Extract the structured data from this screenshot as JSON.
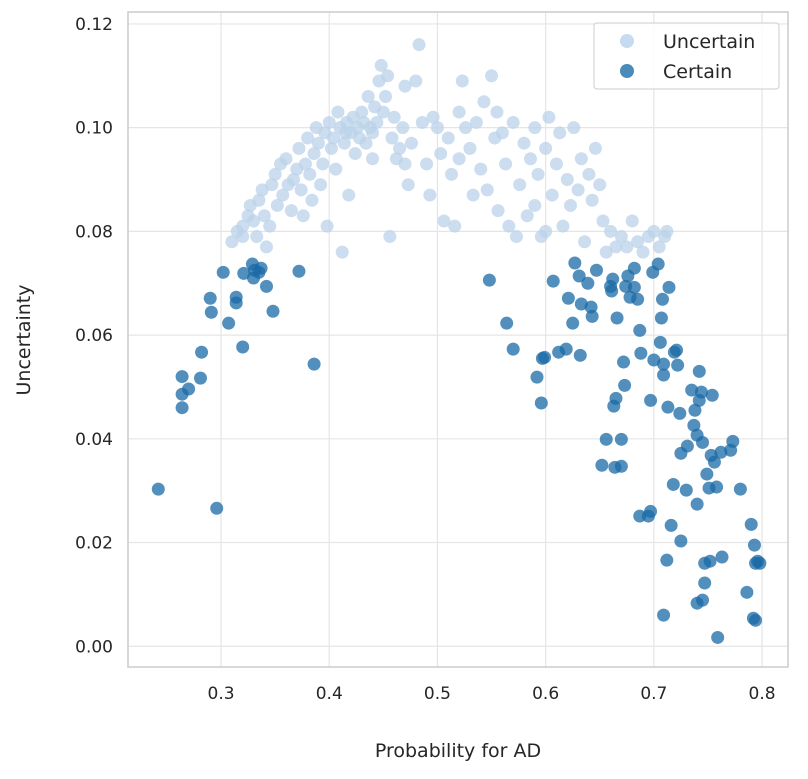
{
  "chart_data": {
    "type": "scatter",
    "title": "",
    "xlabel": "Probability for AD",
    "ylabel": "Uncertainty",
    "xlim": [
      0.214,
      0.824
    ],
    "ylim": [
      -0.004,
      0.1223
    ],
    "xticks": [
      "0.3",
      "0.4",
      "0.5",
      "0.6",
      "0.7",
      "0.8"
    ],
    "yticks": [
      "0.00",
      "0.02",
      "0.04",
      "0.06",
      "0.08",
      "0.10",
      "0.12"
    ],
    "grid": true,
    "legend_position": "top-right",
    "series": [
      {
        "name": "Uncertain",
        "color": "#b9d2e8",
        "points": [
          [
            0.31,
            0.078
          ],
          [
            0.315,
            0.08
          ],
          [
            0.32,
            0.079
          ],
          [
            0.32,
            0.081
          ],
          [
            0.325,
            0.083
          ],
          [
            0.327,
            0.085
          ],
          [
            0.33,
            0.082
          ],
          [
            0.333,
            0.079
          ],
          [
            0.335,
            0.086
          ],
          [
            0.338,
            0.088
          ],
          [
            0.34,
            0.083
          ],
          [
            0.342,
            0.077
          ],
          [
            0.345,
            0.081
          ],
          [
            0.347,
            0.089
          ],
          [
            0.35,
            0.091
          ],
          [
            0.352,
            0.085
          ],
          [
            0.355,
            0.093
          ],
          [
            0.357,
            0.087
          ],
          [
            0.36,
            0.094
          ],
          [
            0.362,
            0.089
          ],
          [
            0.365,
            0.084
          ],
          [
            0.367,
            0.09
          ],
          [
            0.37,
            0.092
          ],
          [
            0.372,
            0.096
          ],
          [
            0.374,
            0.088
          ],
          [
            0.376,
            0.083
          ],
          [
            0.378,
            0.093
          ],
          [
            0.38,
            0.098
          ],
          [
            0.382,
            0.091
          ],
          [
            0.384,
            0.086
          ],
          [
            0.386,
            0.095
          ],
          [
            0.388,
            0.1
          ],
          [
            0.39,
            0.097
          ],
          [
            0.392,
            0.089
          ],
          [
            0.394,
            0.093
          ],
          [
            0.396,
            0.099
          ],
          [
            0.398,
            0.081
          ],
          [
            0.4,
            0.101
          ],
          [
            0.402,
            0.096
          ],
          [
            0.404,
            0.098
          ],
          [
            0.406,
            0.092
          ],
          [
            0.408,
            0.103
          ],
          [
            0.41,
            0.1
          ],
          [
            0.412,
            0.076
          ],
          [
            0.414,
            0.097
          ],
          [
            0.416,
            0.101
          ],
          [
            0.418,
            0.087
          ],
          [
            0.42,
            0.099
          ],
          [
            0.422,
            0.102
          ],
          [
            0.424,
            0.095
          ],
          [
            0.426,
            0.1
          ],
          [
            0.428,
            0.098
          ],
          [
            0.43,
            0.103
          ],
          [
            0.432,
            0.101
          ],
          [
            0.434,
            0.097
          ],
          [
            0.436,
            0.106
          ],
          [
            0.438,
            0.1
          ],
          [
            0.44,
            0.099
          ],
          [
            0.442,
            0.104
          ],
          [
            0.444,
            0.101
          ],
          [
            0.446,
            0.109
          ],
          [
            0.448,
            0.112
          ],
          [
            0.45,
            0.103
          ],
          [
            0.452,
            0.106
          ],
          [
            0.454,
            0.11
          ],
          [
            0.456,
            0.079
          ],
          [
            0.458,
            0.098
          ],
          [
            0.46,
            0.102
          ],
          [
            0.462,
            0.094
          ],
          [
            0.465,
            0.096
          ],
          [
            0.468,
            0.1
          ],
          [
            0.47,
            0.093
          ],
          [
            0.473,
            0.089
          ],
          [
            0.476,
            0.097
          ],
          [
            0.48,
            0.109
          ],
          [
            0.483,
            0.116
          ],
          [
            0.486,
            0.101
          ],
          [
            0.49,
            0.093
          ],
          [
            0.493,
            0.087
          ],
          [
            0.496,
            0.102
          ],
          [
            0.5,
            0.1
          ],
          [
            0.503,
            0.095
          ],
          [
            0.506,
            0.082
          ],
          [
            0.51,
            0.098
          ],
          [
            0.513,
            0.091
          ],
          [
            0.516,
            0.081
          ],
          [
            0.52,
            0.094
          ],
          [
            0.523,
            0.109
          ],
          [
            0.526,
            0.1
          ],
          [
            0.53,
            0.096
          ],
          [
            0.533,
            0.087
          ],
          [
            0.536,
            0.101
          ],
          [
            0.54,
            0.092
          ],
          [
            0.543,
            0.105
          ],
          [
            0.546,
            0.088
          ],
          [
            0.55,
            0.11
          ],
          [
            0.553,
            0.098
          ],
          [
            0.556,
            0.084
          ],
          [
            0.56,
            0.099
          ],
          [
            0.563,
            0.093
          ],
          [
            0.566,
            0.081
          ],
          [
            0.57,
            0.101
          ],
          [
            0.573,
            0.079
          ],
          [
            0.576,
            0.089
          ],
          [
            0.58,
            0.097
          ],
          [
            0.583,
            0.083
          ],
          [
            0.586,
            0.094
          ],
          [
            0.59,
            0.1
          ],
          [
            0.593,
            0.091
          ],
          [
            0.596,
            0.079
          ],
          [
            0.6,
            0.096
          ],
          [
            0.603,
            0.102
          ],
          [
            0.606,
            0.087
          ],
          [
            0.61,
            0.093
          ],
          [
            0.613,
            0.099
          ],
          [
            0.616,
            0.081
          ],
          [
            0.62,
            0.09
          ],
          [
            0.623,
            0.085
          ],
          [
            0.626,
            0.1
          ],
          [
            0.63,
            0.088
          ],
          [
            0.633,
            0.094
          ],
          [
            0.636,
            0.078
          ],
          [
            0.64,
            0.091
          ],
          [
            0.643,
            0.086
          ],
          [
            0.646,
            0.096
          ],
          [
            0.65,
            0.089
          ],
          [
            0.653,
            0.082
          ],
          [
            0.656,
            0.076
          ],
          [
            0.66,
            0.08
          ],
          [
            0.665,
            0.077
          ],
          [
            0.67,
            0.079
          ],
          [
            0.675,
            0.077
          ],
          [
            0.68,
            0.082
          ],
          [
            0.685,
            0.078
          ],
          [
            0.69,
            0.076
          ],
          [
            0.695,
            0.079
          ],
          [
            0.7,
            0.08
          ],
          [
            0.705,
            0.077
          ],
          [
            0.71,
            0.079
          ],
          [
            0.712,
            0.08
          ],
          [
            0.6,
            0.08
          ],
          [
            0.59,
            0.085
          ],
          [
            0.555,
            0.103
          ],
          [
            0.52,
            0.103
          ],
          [
            0.47,
            0.108
          ],
          [
            0.44,
            0.094
          ],
          [
            0.415,
            0.099
          ]
        ]
      },
      {
        "name": "Certain",
        "color": "#1a6aa6",
        "points": [
          [
            0.242,
            0.0303
          ],
          [
            0.296,
            0.0266
          ],
          [
            0.264,
            0.052
          ],
          [
            0.264,
            0.0486
          ],
          [
            0.264,
            0.046
          ],
          [
            0.27,
            0.0496
          ],
          [
            0.282,
            0.0567
          ],
          [
            0.281,
            0.0517
          ],
          [
            0.29,
            0.0671
          ],
          [
            0.291,
            0.0644
          ],
          [
            0.302,
            0.0721
          ],
          [
            0.307,
            0.0623
          ],
          [
            0.314,
            0.0673
          ],
          [
            0.314,
            0.0662
          ],
          [
            0.321,
            0.0719
          ],
          [
            0.32,
            0.0577
          ],
          [
            0.329,
            0.0737
          ],
          [
            0.331,
            0.0725
          ],
          [
            0.335,
            0.0721
          ],
          [
            0.337,
            0.0729
          ],
          [
            0.33,
            0.071
          ],
          [
            0.342,
            0.0694
          ],
          [
            0.348,
            0.0646
          ],
          [
            0.372,
            0.0723
          ],
          [
            0.386,
            0.0544
          ],
          [
            0.548,
            0.0706
          ],
          [
            0.564,
            0.0623
          ],
          [
            0.57,
            0.0573
          ],
          [
            0.592,
            0.0519
          ],
          [
            0.597,
            0.0555
          ],
          [
            0.596,
            0.0469
          ],
          [
            0.599,
            0.0557
          ],
          [
            0.607,
            0.0704
          ],
          [
            0.612,
            0.0567
          ],
          [
            0.619,
            0.0573
          ],
          [
            0.621,
            0.0671
          ],
          [
            0.625,
            0.0623
          ],
          [
            0.627,
            0.0739
          ],
          [
            0.631,
            0.0714
          ],
          [
            0.632,
            0.0561
          ],
          [
            0.633,
            0.066
          ],
          [
            0.639,
            0.07
          ],
          [
            0.642,
            0.0654
          ],
          [
            0.643,
            0.0636
          ],
          [
            0.647,
            0.0725
          ],
          [
            0.652,
            0.0349
          ],
          [
            0.656,
            0.0399
          ],
          [
            0.66,
            0.0694
          ],
          [
            0.661,
            0.0685
          ],
          [
            0.663,
            0.0463
          ],
          [
            0.665,
            0.0478
          ],
          [
            0.662,
            0.0708
          ],
          [
            0.664,
            0.0345
          ],
          [
            0.666,
            0.0633
          ],
          [
            0.67,
            0.0399
          ],
          [
            0.67,
            0.0347
          ],
          [
            0.672,
            0.0548
          ],
          [
            0.673,
            0.0503
          ],
          [
            0.674,
            0.0694
          ],
          [
            0.678,
            0.0673
          ],
          [
            0.676,
            0.0714
          ],
          [
            0.682,
            0.0729
          ],
          [
            0.682,
            0.0692
          ],
          [
            0.685,
            0.0669
          ],
          [
            0.687,
            0.0609
          ],
          [
            0.687,
            0.0251
          ],
          [
            0.688,
            0.0565
          ],
          [
            0.695,
            0.0251
          ],
          [
            0.697,
            0.026
          ],
          [
            0.697,
            0.0474
          ],
          [
            0.699,
            0.0721
          ],
          [
            0.7,
            0.0552
          ],
          [
            0.704,
            0.0737
          ],
          [
            0.706,
            0.0586
          ],
          [
            0.708,
            0.0669
          ],
          [
            0.707,
            0.0633
          ],
          [
            0.709,
            0.0544
          ],
          [
            0.709,
            0.0523
          ],
          [
            0.709,
            0.006
          ],
          [
            0.712,
            0.0166
          ],
          [
            0.714,
            0.0692
          ],
          [
            0.713,
            0.0461
          ],
          [
            0.716,
            0.0233
          ],
          [
            0.718,
            0.0312
          ],
          [
            0.719,
            0.0567
          ],
          [
            0.721,
            0.0571
          ],
          [
            0.722,
            0.0542
          ],
          [
            0.724,
            0.0449
          ],
          [
            0.725,
            0.0372
          ],
          [
            0.725,
            0.0203
          ],
          [
            0.73,
            0.0301
          ],
          [
            0.731,
            0.0386
          ],
          [
            0.735,
            0.0494
          ],
          [
            0.737,
            0.0426
          ],
          [
            0.738,
            0.0455
          ],
          [
            0.74,
            0.0407
          ],
          [
            0.74,
            0.0274
          ],
          [
            0.74,
            0.0083
          ],
          [
            0.742,
            0.053
          ],
          [
            0.742,
            0.0474
          ],
          [
            0.744,
            0.049
          ],
          [
            0.745,
            0.0089
          ],
          [
            0.745,
            0.0393
          ],
          [
            0.747,
            0.0122
          ],
          [
            0.747,
            0.016
          ],
          [
            0.749,
            0.0332
          ],
          [
            0.751,
            0.0305
          ],
          [
            0.752,
            0.0164
          ],
          [
            0.753,
            0.0368
          ],
          [
            0.754,
            0.0484
          ],
          [
            0.756,
            0.0355
          ],
          [
            0.758,
            0.0307
          ],
          [
            0.759,
            0.0017
          ],
          [
            0.762,
            0.0374
          ],
          [
            0.763,
            0.0172
          ],
          [
            0.771,
            0.0378
          ],
          [
            0.773,
            0.0395
          ],
          [
            0.78,
            0.0303
          ],
          [
            0.786,
            0.0104
          ],
          [
            0.79,
            0.0235
          ],
          [
            0.793,
            0.0195
          ],
          [
            0.792,
            0.0054
          ],
          [
            0.794,
            0.016
          ],
          [
            0.794,
            0.005
          ],
          [
            0.798,
            0.016
          ],
          [
            0.796,
            0.0164
          ]
        ]
      }
    ]
  }
}
